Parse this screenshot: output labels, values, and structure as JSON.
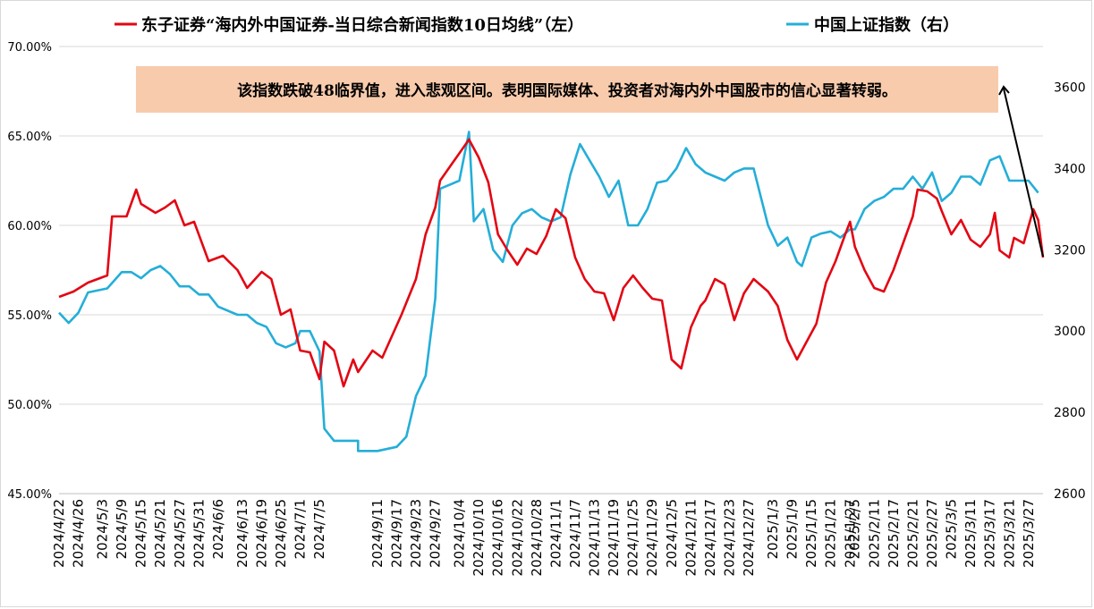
{
  "chart_data": {
    "type": "line",
    "legend_position": "top",
    "grid": true,
    "series": [
      {
        "name": "东子证券“海内外中国证券-当日综合新闻指数10日均线”（左）",
        "axis": "left",
        "color": "#e30613",
        "points": [
          [
            "2024-04-22",
            56.0
          ],
          [
            "2024-04-25",
            56.3
          ],
          [
            "2024-04-30",
            56.8
          ],
          [
            "2024-05-06",
            57.2
          ],
          [
            "2024-05-07",
            60.5
          ],
          [
            "2024-05-10",
            60.5
          ],
          [
            "2024-05-14",
            62.0
          ],
          [
            "2024-05-15",
            61.2
          ],
          [
            "2024-05-20",
            60.7
          ],
          [
            "2024-05-22",
            61.0
          ],
          [
            "2024-05-24",
            61.4
          ],
          [
            "2024-05-28",
            60.0
          ],
          [
            "2024-05-30",
            60.2
          ],
          [
            "2024-06-04",
            58.0
          ],
          [
            "2024-06-07",
            58.3
          ],
          [
            "2024-06-12",
            57.5
          ],
          [
            "2024-06-14",
            56.5
          ],
          [
            "2024-06-19",
            57.4
          ],
          [
            "2024-06-21",
            57.0
          ],
          [
            "2024-06-25",
            55.0
          ],
          [
            "2024-06-27",
            55.3
          ],
          [
            "2024-07-01",
            53.0
          ],
          [
            "2024-07-03",
            52.9
          ],
          [
            "2024-07-05",
            51.4
          ],
          [
            "2024-07-08",
            53.5
          ],
          [
            "2024-07-10",
            53.0
          ],
          [
            "2024-07-12",
            51.0
          ],
          [
            "2024-07-16",
            52.5
          ],
          [
            "2024-09-05",
            51.8
          ],
          [
            "2024-09-10",
            53.0
          ],
          [
            "2024-09-12",
            52.6
          ],
          [
            "2024-09-18",
            55.0
          ],
          [
            "2024-09-23",
            57.0
          ],
          [
            "2024-09-25",
            59.5
          ],
          [
            "2024-09-27",
            61.0
          ],
          [
            "2024-09-30",
            62.5
          ],
          [
            "2024-10-08",
            64.8
          ],
          [
            "2024-10-10",
            63.8
          ],
          [
            "2024-10-14",
            62.4
          ],
          [
            "2024-10-16",
            59.5
          ],
          [
            "2024-10-18",
            58.6
          ],
          [
            "2024-10-22",
            57.8
          ],
          [
            "2024-10-24",
            58.7
          ],
          [
            "2024-10-28",
            58.4
          ],
          [
            "2024-10-30",
            59.4
          ],
          [
            "2024-11-01",
            60.9
          ],
          [
            "2024-11-05",
            60.4
          ],
          [
            "2024-11-07",
            58.2
          ],
          [
            "2024-11-11",
            57.0
          ],
          [
            "2024-11-13",
            56.3
          ],
          [
            "2024-11-15",
            56.2
          ],
          [
            "2024-11-19",
            54.7
          ],
          [
            "2024-11-21",
            56.5
          ],
          [
            "2024-11-25",
            57.2
          ],
          [
            "2024-11-27",
            56.5
          ],
          [
            "2024-11-29",
            55.9
          ],
          [
            "2024-12-03",
            55.8
          ],
          [
            "2024-12-05",
            52.5
          ],
          [
            "2024-12-09",
            52.0
          ],
          [
            "2024-12-11",
            54.3
          ],
          [
            "2024-12-13",
            55.5
          ],
          [
            "2024-12-16",
            55.8
          ],
          [
            "2024-12-18",
            57.0
          ],
          [
            "2024-12-20",
            56.7
          ],
          [
            "2024-12-24",
            54.7
          ],
          [
            "2024-12-26",
            56.2
          ],
          [
            "2024-12-30",
            57.0
          ],
          [
            "2025-01-02",
            56.3
          ],
          [
            "2025-01-06",
            55.5
          ],
          [
            "2025-01-08",
            53.6
          ],
          [
            "2025-01-10",
            52.5
          ],
          [
            "2025-01-14",
            53.5
          ],
          [
            "2025-01-16",
            54.5
          ],
          [
            "2025-01-20",
            56.8
          ],
          [
            "2025-01-22",
            58.0
          ],
          [
            "2025-01-24",
            59.5
          ],
          [
            "2025-01-27",
            60.2
          ],
          [
            "2025-02-05",
            58.8
          ],
          [
            "2025-02-07",
            57.5
          ],
          [
            "2025-02-11",
            56.5
          ],
          [
            "2025-02-13",
            56.3
          ],
          [
            "2025-02-17",
            57.5
          ],
          [
            "2025-02-19",
            59.0
          ],
          [
            "2025-02-21",
            60.5
          ],
          [
            "2025-02-24",
            62.0
          ],
          [
            "2025-02-26",
            61.9
          ],
          [
            "2025-02-28",
            61.5
          ],
          [
            "2025-03-03",
            60.8
          ],
          [
            "2025-03-05",
            59.5
          ],
          [
            "2025-03-07",
            60.3
          ],
          [
            "2025-03-11",
            59.2
          ],
          [
            "2025-03-13",
            58.8
          ],
          [
            "2025-03-17",
            59.5
          ],
          [
            "2025-03-18",
            60.7
          ],
          [
            "2025-03-19",
            58.6
          ],
          [
            "2025-03-21",
            58.2
          ],
          [
            "2025-03-24",
            59.3
          ],
          [
            "2025-03-26",
            59.0
          ],
          [
            "2025-03-28",
            60.9
          ],
          [
            "2025-03-31",
            60.3
          ],
          [
            "2025-04-01",
            58.2
          ]
        ]
      },
      {
        "name": "中国上证指数（右）",
        "axis": "right",
        "color": "#24aed8",
        "points": [
          [
            "2024-04-22",
            3045
          ],
          [
            "2024-04-24",
            3020
          ],
          [
            "2024-04-26",
            3045
          ],
          [
            "2024-04-30",
            3095
          ],
          [
            "2024-05-06",
            3105
          ],
          [
            "2024-05-09",
            3145
          ],
          [
            "2024-05-13",
            3145
          ],
          [
            "2024-05-15",
            3130
          ],
          [
            "2024-05-17",
            3150
          ],
          [
            "2024-05-21",
            3160
          ],
          [
            "2024-05-23",
            3140
          ],
          [
            "2024-05-27",
            3110
          ],
          [
            "2024-05-29",
            3110
          ],
          [
            "2024-05-31",
            3090
          ],
          [
            "2024-06-04",
            3090
          ],
          [
            "2024-06-06",
            3060
          ],
          [
            "2024-06-12",
            3040
          ],
          [
            "2024-06-14",
            3040
          ],
          [
            "2024-06-18",
            3020
          ],
          [
            "2024-06-20",
            3010
          ],
          [
            "2024-06-24",
            2970
          ],
          [
            "2024-06-26",
            2960
          ],
          [
            "2024-06-28",
            2970
          ],
          [
            "2024-07-01",
            3000
          ],
          [
            "2024-07-03",
            3000
          ],
          [
            "2024-07-05",
            2950
          ],
          [
            "2024-07-08",
            2760
          ],
          [
            "2024-07-10",
            2730
          ],
          [
            "2024-09-03",
            2730
          ],
          [
            "2024-09-05",
            2705
          ],
          [
            "2024-09-11",
            2705
          ],
          [
            "2024-09-17",
            2715
          ],
          [
            "2024-09-19",
            2740
          ],
          [
            "2024-09-23",
            2840
          ],
          [
            "2024-09-25",
            2890
          ],
          [
            "2024-09-27",
            3080
          ],
          [
            "2024-09-30",
            3350
          ],
          [
            "2024-10-04",
            3370
          ],
          [
            "2024-10-08",
            3490
          ],
          [
            "2024-10-09",
            3270
          ],
          [
            "2024-10-11",
            3300
          ],
          [
            "2024-10-15",
            3200
          ],
          [
            "2024-10-17",
            3170
          ],
          [
            "2024-10-21",
            3260
          ],
          [
            "2024-10-23",
            3290
          ],
          [
            "2024-10-25",
            3300
          ],
          [
            "2024-10-29",
            3280
          ],
          [
            "2024-10-31",
            3270
          ],
          [
            "2024-11-04",
            3280
          ],
          [
            "2024-11-06",
            3385
          ],
          [
            "2024-11-08",
            3460
          ],
          [
            "2024-11-12",
            3420
          ],
          [
            "2024-11-14",
            3380
          ],
          [
            "2024-11-18",
            3330
          ],
          [
            "2024-11-20",
            3370
          ],
          [
            "2024-11-22",
            3260
          ],
          [
            "2024-11-26",
            3260
          ],
          [
            "2024-11-28",
            3300
          ],
          [
            "2024-12-02",
            3365
          ],
          [
            "2024-12-04",
            3370
          ],
          [
            "2024-12-06",
            3400
          ],
          [
            "2024-12-10",
            3450
          ],
          [
            "2024-12-12",
            3410
          ],
          [
            "2024-12-16",
            3390
          ],
          [
            "2024-12-18",
            3380
          ],
          [
            "2024-12-20",
            3370
          ],
          [
            "2024-12-24",
            3390
          ],
          [
            "2024-12-26",
            3400
          ],
          [
            "2024-12-30",
            3400
          ],
          [
            "2025-01-02",
            3260
          ],
          [
            "2025-01-06",
            3210
          ],
          [
            "2025-01-08",
            3230
          ],
          [
            "2025-01-10",
            3170
          ],
          [
            "2025-01-13",
            3160
          ],
          [
            "2025-01-15",
            3230
          ],
          [
            "2025-01-17",
            3240
          ],
          [
            "2025-01-21",
            3245
          ],
          [
            "2025-01-23",
            3230
          ],
          [
            "2025-01-27",
            3250
          ],
          [
            "2025-02-05",
            3250
          ],
          [
            "2025-02-07",
            3300
          ],
          [
            "2025-02-11",
            3320
          ],
          [
            "2025-02-13",
            3330
          ],
          [
            "2025-02-17",
            3350
          ],
          [
            "2025-02-19",
            3350
          ],
          [
            "2025-02-21",
            3380
          ],
          [
            "2025-02-25",
            3350
          ],
          [
            "2025-02-27",
            3390
          ],
          [
            "2025-03-03",
            3320
          ],
          [
            "2025-03-05",
            3340
          ],
          [
            "2025-03-07",
            3380
          ],
          [
            "2025-03-11",
            3380
          ],
          [
            "2025-03-13",
            3360
          ],
          [
            "2025-03-17",
            3420
          ],
          [
            "2025-03-19",
            3430
          ],
          [
            "2025-03-21",
            3370
          ],
          [
            "2025-03-25",
            3370
          ],
          [
            "2025-03-27",
            3370
          ],
          [
            "2025-03-31",
            3340
          ]
        ]
      }
    ],
    "y_left": {
      "min": 45,
      "max": 70,
      "step": 5,
      "tick_labels": [
        "45.00%",
        "50.00%",
        "55.00%",
        "60.00%",
        "65.00%",
        "70.00%"
      ]
    },
    "y_right": {
      "min": 2600,
      "max": 3700,
      "ticks": [
        2600,
        2800,
        3000,
        3200,
        3400,
        3600
      ]
    },
    "x": {
      "start": "2024-04-22",
      "end": "2025-04-01",
      "tick_labels": [
        "2024/4/22",
        "2024/4/26",
        "2024/5/3",
        "2024/5/9",
        "2024/5/15",
        "2024/5/21",
        "2024/5/27",
        "2024/5/31",
        "2024/6/6",
        "2024/6/13",
        "2024/6/19",
        "2024/6/25",
        "2024/7/1",
        "2024/7/5",
        "2024/9/11",
        "2024/9/17",
        "2024/9/23",
        "2024/9/27",
        "2024/10/4",
        "2024/10/10",
        "2024/10/16",
        "2024/10/22",
        "2024/10/28",
        "2024/11/1",
        "2024/11/7",
        "2024/11/13",
        "2024/11/19",
        "2024/11/25",
        "2024/11/29",
        "2024/12/5",
        "2024/12/11",
        "2024/12/17",
        "2024/12/23",
        "2024/12/27",
        "2025/1/3",
        "2025/1/9",
        "2025/1/15",
        "2025/1/21",
        "2025/1/27",
        "2025/2/5",
        "2025/2/11",
        "2025/2/17",
        "2025/2/21",
        "2025/2/27",
        "2025/3/5",
        "2025/3/11",
        "2025/3/17",
        "2025/3/21",
        "2025/3/27"
      ]
    },
    "annotation": {
      "text": "该指数跌破48临界值，进入悲观区间。表明国际媒体、投资者对海内外中国股市的信心显著转弱。",
      "background": "#f8cbad"
    }
  }
}
